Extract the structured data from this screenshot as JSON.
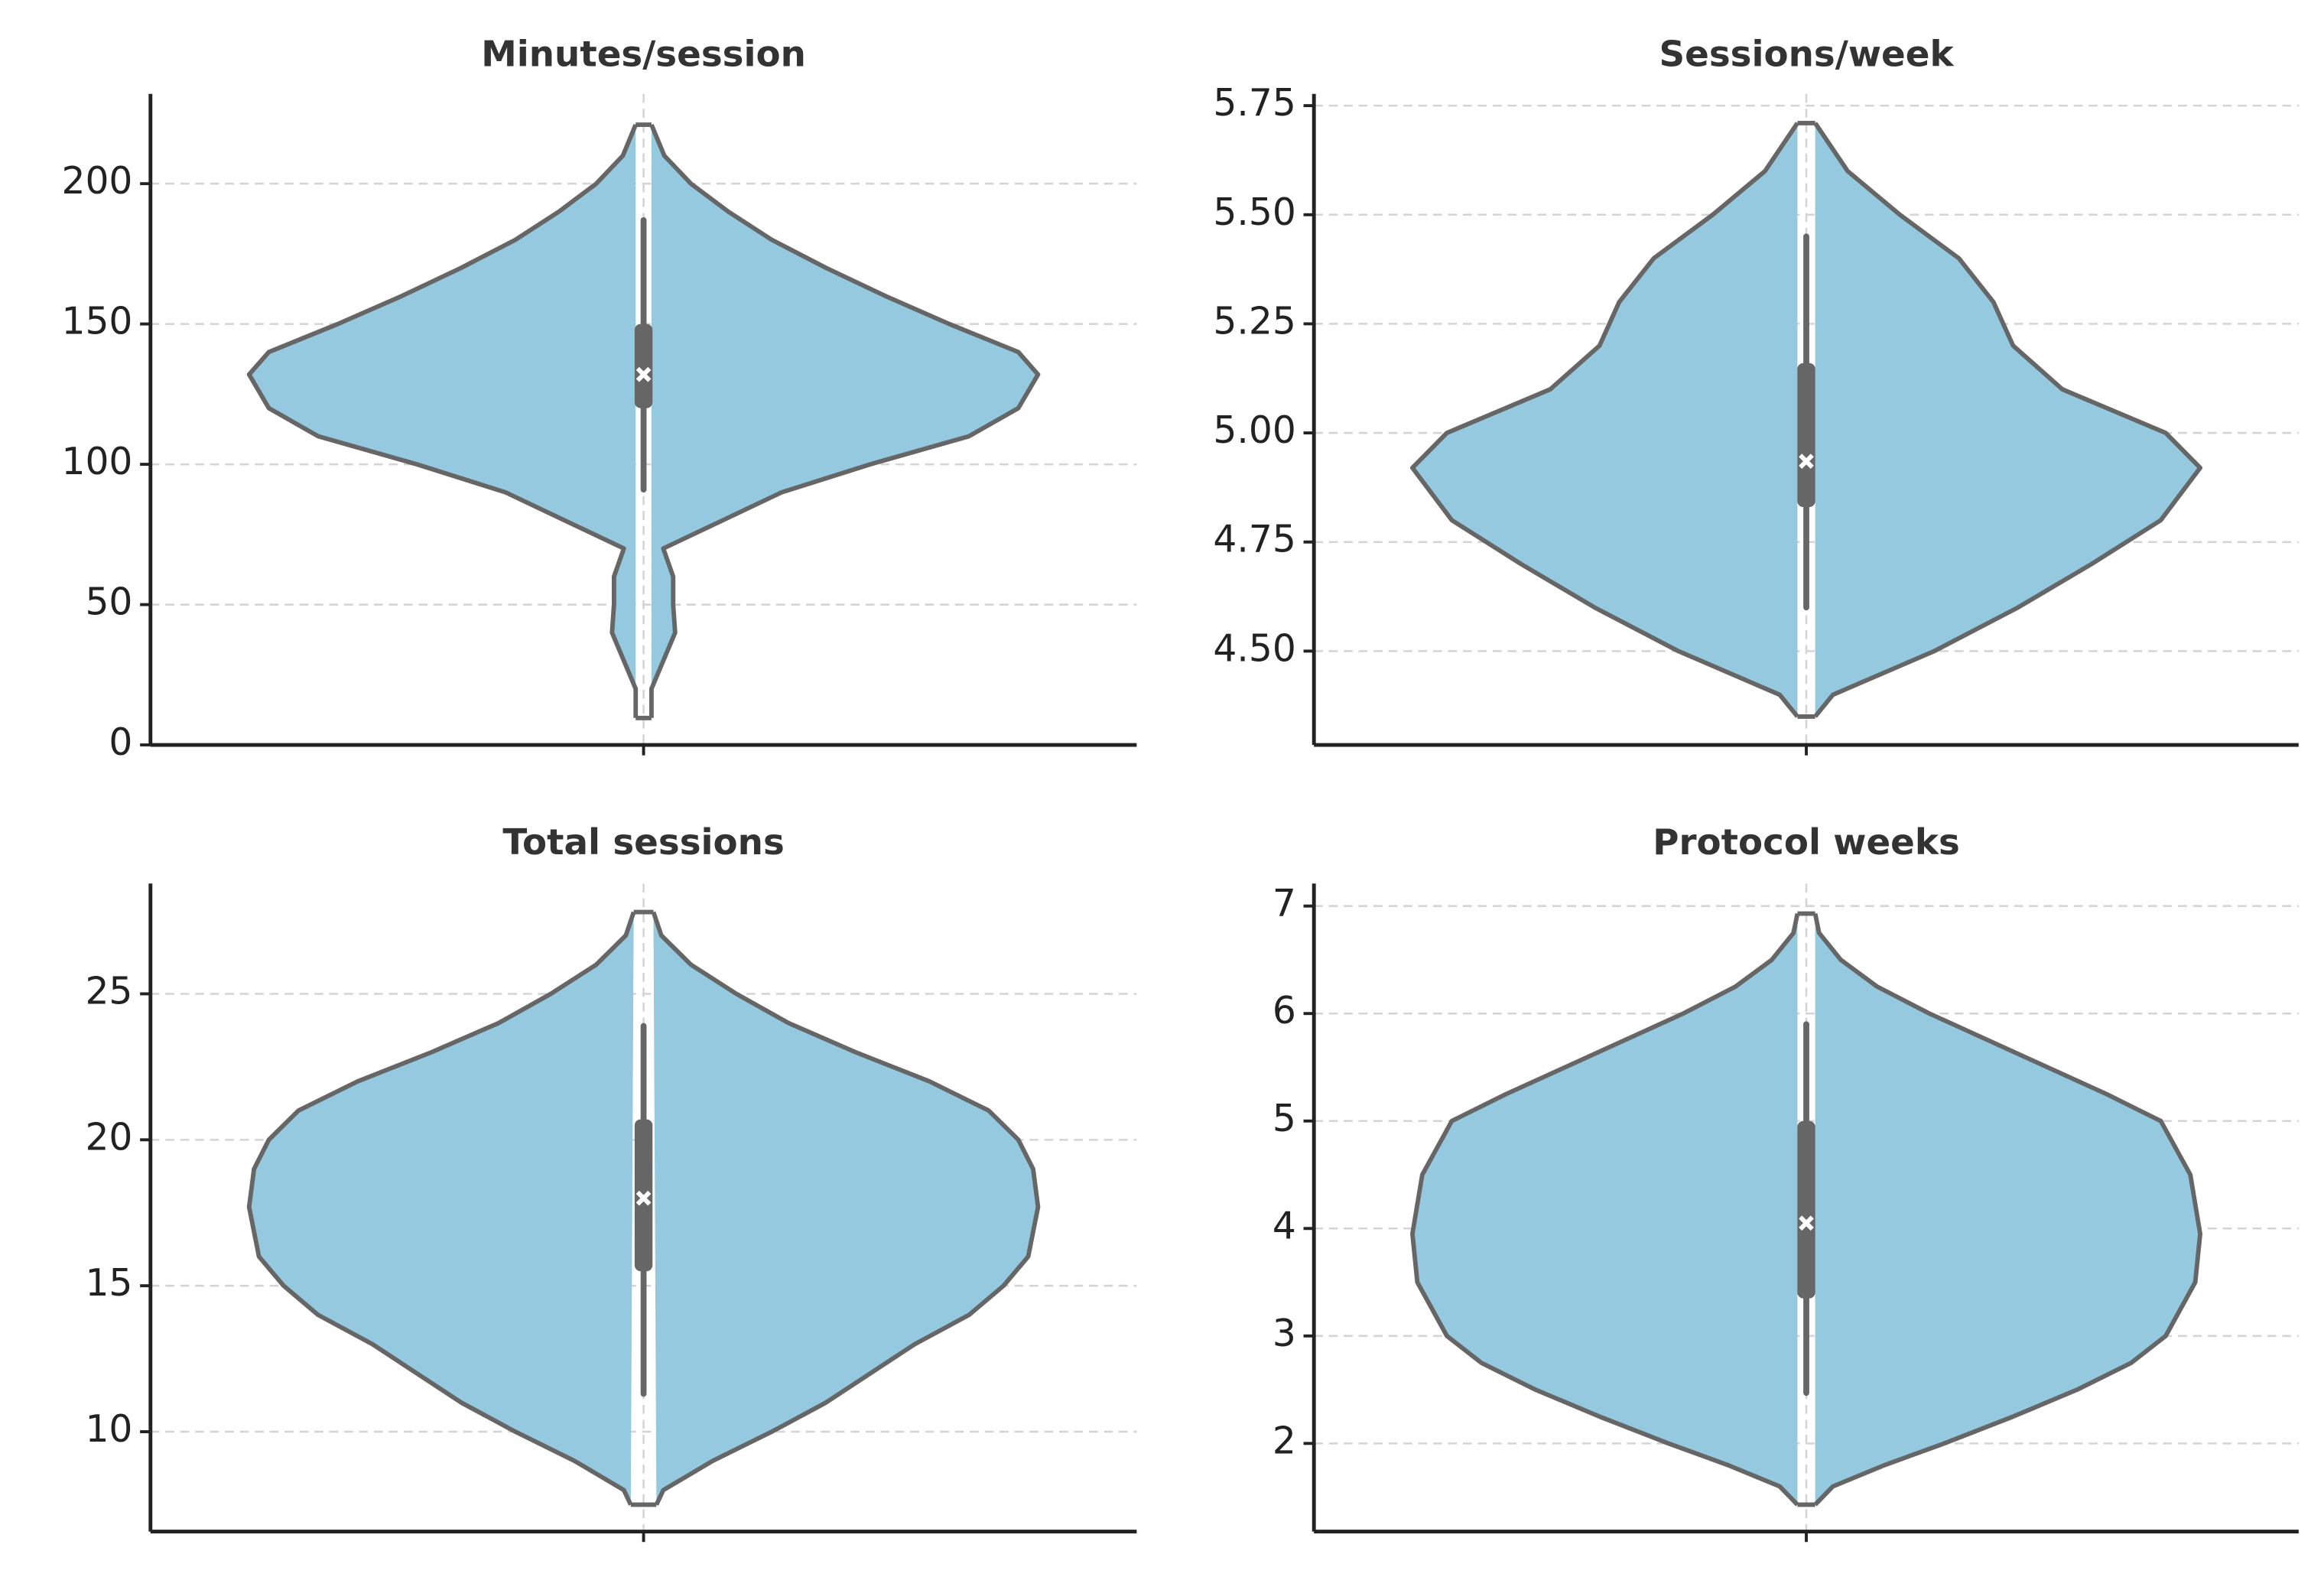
{
  "chart_data": [
    {
      "type": "violin",
      "title": "Minutes/session",
      "color": "#94c9df",
      "grid": true,
      "ylim": [
        0,
        232
      ],
      "yticks": [
        0,
        50,
        100,
        150,
        200
      ],
      "xlim": [
        -0.5,
        0.5
      ],
      "xticks": [
        0
      ],
      "violin": {
        "y": [
          9.6,
          20,
          40,
          50,
          60,
          70,
          80,
          90,
          100,
          110,
          120,
          132,
          140,
          150,
          160,
          170,
          180,
          190,
          200,
          210,
          221
        ],
        "width": [
          0.008,
          0.008,
          0.032,
          0.03,
          0.03,
          0.02,
          0.08,
          0.14,
          0.23,
          0.33,
          0.38,
          0.4,
          0.38,
          0.31,
          0.245,
          0.185,
          0.13,
          0.086,
          0.048,
          0.021,
          0.008
        ]
      },
      "box": {
        "whisker_low": 91,
        "q1": 120,
        "median": 132,
        "q3": 150,
        "whisker_high": 187
      }
    },
    {
      "type": "violin",
      "title": "Sessions/week",
      "color": "#94c9df",
      "grid": true,
      "ylim": [
        4.285,
        5.777
      ],
      "yticks": [
        {
          "value": 4.5,
          "label": "4.50"
        },
        4.75,
        {
          "value": 5,
          "label": "5.00"
        },
        5.25,
        {
          "value": 5.5,
          "label": "5.50"
        },
        5.75
      ],
      "xlim": [
        -0.5,
        0.5
      ],
      "xticks": [
        0
      ],
      "violin": {
        "y": [
          4.35,
          4.4,
          4.5,
          4.6,
          4.7,
          4.8,
          4.92,
          5.0,
          5.1,
          5.2,
          5.3,
          5.4,
          5.5,
          5.6,
          5.71
        ],
        "width": [
          0.009,
          0.027,
          0.13,
          0.215,
          0.29,
          0.36,
          0.4,
          0.365,
          0.26,
          0.21,
          0.19,
          0.155,
          0.095,
          0.042,
          0.009
        ]
      },
      "box": {
        "whisker_low": 4.6,
        "q1": 4.83,
        "median": 4.935,
        "q3": 5.16,
        "whisker_high": 5.45
      }
    },
    {
      "type": "violin",
      "title": "Total sessions",
      "color": "#94c9df",
      "grid": true,
      "ylim": [
        6.58,
        28.78
      ],
      "yticks": [
        10,
        15,
        20,
        25
      ],
      "xlim": [
        -0.5,
        0.5
      ],
      "xticks": [
        0
      ],
      "violin": {
        "y": [
          7.5,
          8,
          9,
          10,
          11,
          12,
          13,
          14,
          15,
          16,
          17.7,
          19,
          20,
          21,
          22,
          23,
          24,
          25,
          26,
          27,
          27.8
        ],
        "width": [
          0.013,
          0.02,
          0.07,
          0.13,
          0.185,
          0.23,
          0.275,
          0.33,
          0.365,
          0.39,
          0.4,
          0.395,
          0.38,
          0.35,
          0.29,
          0.215,
          0.147,
          0.094,
          0.048,
          0.018,
          0.01
        ]
      },
      "box": {
        "whisker_low": 11.3,
        "q1": 15.5,
        "median": 18.0,
        "q3": 20.7,
        "whisker_high": 23.9
      }
    },
    {
      "type": "violin",
      "title": "Protocol weeks",
      "color": "#94c9df",
      "grid": true,
      "ylim": [
        1.18,
        7.21
      ],
      "yticks": [
        2,
        3,
        4,
        5,
        6,
        7
      ],
      "xlim": [
        -0.5,
        0.5
      ],
      "xticks": [
        0
      ],
      "violin": {
        "y": [
          1.43,
          1.6,
          1.8,
          2.0,
          2.25,
          2.5,
          2.75,
          3.0,
          3.5,
          3.95,
          4.5,
          5.0,
          5.25,
          5.5,
          5.75,
          6.0,
          6.25,
          6.5,
          6.75,
          6.93
        ],
        "width": [
          0.009,
          0.027,
          0.08,
          0.14,
          0.21,
          0.275,
          0.33,
          0.365,
          0.395,
          0.4,
          0.39,
          0.36,
          0.305,
          0.245,
          0.185,
          0.125,
          0.072,
          0.035,
          0.013,
          0.009
        ]
      },
      "box": {
        "whisker_low": 2.47,
        "q1": 3.35,
        "median": 4.05,
        "q3": 5.0,
        "whisker_high": 5.9
      }
    }
  ]
}
